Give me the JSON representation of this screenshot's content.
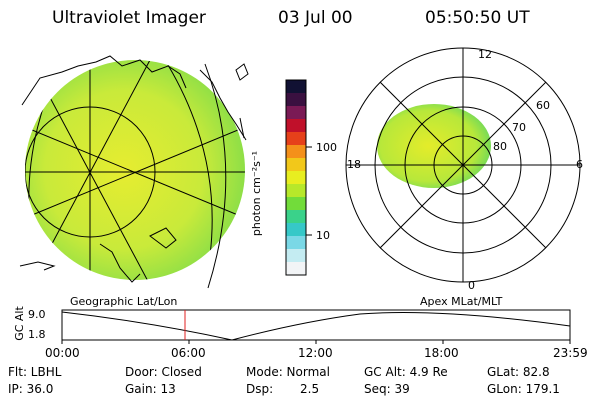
{
  "header": {
    "title": "Ultraviolet Imager",
    "date": "03 Jul 00",
    "time": "05:50:50 UT"
  },
  "colorbar": {
    "label": "photon cm⁻²s⁻¹",
    "ticks": [
      "100",
      "10"
    ],
    "colors": [
      "#111133",
      "#3a1040",
      "#7a1a55",
      "#c0102a",
      "#e6401a",
      "#f4901a",
      "#f2c81a",
      "#e8ee20",
      "#b7e82a",
      "#72dc3a",
      "#3ad28a",
      "#36c8c8",
      "#7ad8e6",
      "#c4ecf2",
      "#f2f4f6"
    ]
  },
  "geo_panel": {
    "label": "Geographic Lat/Lon",
    "fill": "#c9ea3a"
  },
  "polar_panel": {
    "label": "Apex MLat/MLT",
    "lat_labels": [
      "60",
      "70",
      "80"
    ],
    "mlt_labels": {
      "top": "12",
      "right": "6",
      "bottom": "0",
      "left": "18"
    }
  },
  "timeline": {
    "ylabel": "GC Alt",
    "yticks": [
      "9.0",
      "1.8"
    ],
    "xticks": [
      "00:00",
      "06:00",
      "12:00",
      "18:00",
      "23:59"
    ],
    "current_marker_color": "#e02020"
  },
  "info": {
    "flt": "Flt: LBHL",
    "ip": "IP: 36.0",
    "door": "Door: Closed",
    "gain": "Gain: 13",
    "mode": "Mode: Normal",
    "dsp_label": "Dsp:",
    "dsp_value": "2.5",
    "gcalt": "GC Alt: 4.9 Re",
    "seq": "Seq: 39",
    "glat": "GLat: 82.8",
    "glon": "GLon: 179.1"
  }
}
